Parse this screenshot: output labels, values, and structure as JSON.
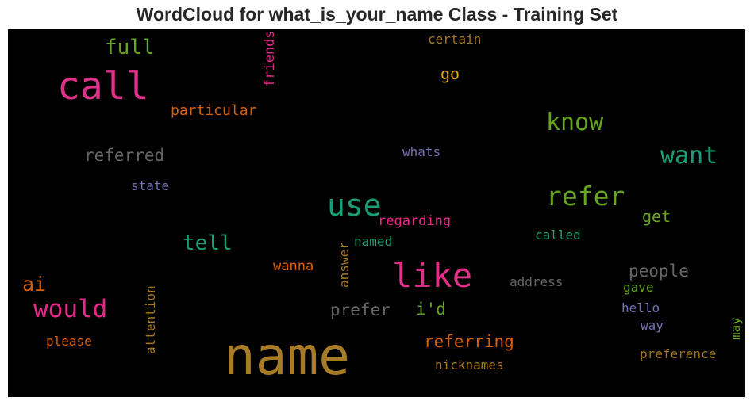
{
  "chart_data": {
    "type": "wordcloud",
    "title": "WordCloud for what_is_your_name Class - Training Set",
    "background": "#000000",
    "palette": "Dark2",
    "words": [
      {
        "text": "name",
        "color": "#a87b26",
        "orientation": "horizontal"
      },
      {
        "text": "call",
        "color": "#e0318a",
        "orientation": "horizontal"
      },
      {
        "text": "like",
        "color": "#e0318a",
        "orientation": "horizontal"
      },
      {
        "text": "use",
        "color": "#1b9e77",
        "orientation": "horizontal"
      },
      {
        "text": "refer",
        "color": "#66a61e",
        "orientation": "horizontal"
      },
      {
        "text": "would",
        "color": "#e7298a",
        "orientation": "horizontal"
      },
      {
        "text": "know",
        "color": "#66a61e",
        "orientation": "horizontal"
      },
      {
        "text": "want",
        "color": "#1b9e77",
        "orientation": "horizontal"
      },
      {
        "text": "full",
        "color": "#66a61e",
        "orientation": "horizontal"
      },
      {
        "text": "tell",
        "color": "#1b9e77",
        "orientation": "horizontal"
      },
      {
        "text": "ai",
        "color": "#d95f02",
        "orientation": "horizontal"
      },
      {
        "text": "referring",
        "color": "#d95f02",
        "orientation": "horizontal"
      },
      {
        "text": "referred",
        "color": "#666666",
        "orientation": "horizontal"
      },
      {
        "text": "people",
        "color": "#666666",
        "orientation": "horizontal"
      },
      {
        "text": "prefer",
        "color": "#666666",
        "orientation": "horizontal"
      },
      {
        "text": "i'd",
        "color": "#66a61e",
        "orientation": "horizontal"
      },
      {
        "text": "go",
        "color": "#e6ab02",
        "orientation": "horizontal"
      },
      {
        "text": "get",
        "color": "#66a61e",
        "orientation": "horizontal"
      },
      {
        "text": "particular",
        "color": "#d95f02",
        "orientation": "horizontal"
      },
      {
        "text": "regarding",
        "color": "#e7298a",
        "orientation": "horizontal"
      },
      {
        "text": "called",
        "color": "#1b9e77",
        "orientation": "horizontal"
      },
      {
        "text": "wanna",
        "color": "#d95f02",
        "orientation": "horizontal"
      },
      {
        "text": "nicknames",
        "color": "#a6761d",
        "orientation": "horizontal"
      },
      {
        "text": "preference",
        "color": "#a6761d",
        "orientation": "horizontal"
      },
      {
        "text": "please",
        "color": "#d95f02",
        "orientation": "horizontal"
      },
      {
        "text": "certain",
        "color": "#a6761d",
        "orientation": "horizontal"
      },
      {
        "text": "whats",
        "color": "#7570b3",
        "orientation": "horizontal"
      },
      {
        "text": "state",
        "color": "#7570b3",
        "orientation": "horizontal"
      },
      {
        "text": "named",
        "color": "#1b9e77",
        "orientation": "horizontal"
      },
      {
        "text": "address",
        "color": "#666666",
        "orientation": "horizontal"
      },
      {
        "text": "gave",
        "color": "#66a61e",
        "orientation": "horizontal"
      },
      {
        "text": "hello",
        "color": "#7570b3",
        "orientation": "horizontal"
      },
      {
        "text": "way",
        "color": "#7570b3",
        "orientation": "horizontal"
      },
      {
        "text": "friends",
        "color": "#e7298a",
        "orientation": "vertical"
      },
      {
        "text": "answer",
        "color": "#a6761d",
        "orientation": "vertical"
      },
      {
        "text": "attention",
        "color": "#a6761d",
        "orientation": "vertical"
      },
      {
        "text": "may",
        "color": "#66a61e",
        "orientation": "vertical"
      }
    ]
  }
}
